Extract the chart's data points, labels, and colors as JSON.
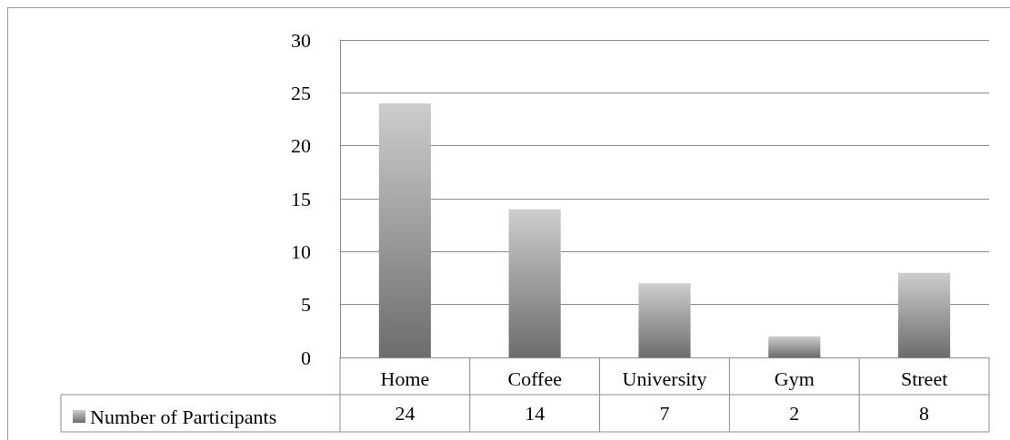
{
  "chart_data": {
    "type": "bar",
    "categories": [
      "Home",
      "Coffee",
      "University",
      "Gym",
      "Street"
    ],
    "series": [
      {
        "name": "Number of Participants",
        "color": "#9a9a9a",
        "values": [
          24,
          14,
          7,
          2,
          8
        ]
      }
    ],
    "ylim": [
      0,
      30
    ],
    "yticks": [
      0,
      5,
      10,
      15,
      20,
      25,
      30
    ],
    "grid": "y",
    "legend": "bottom left",
    "data_labels": true
  }
}
